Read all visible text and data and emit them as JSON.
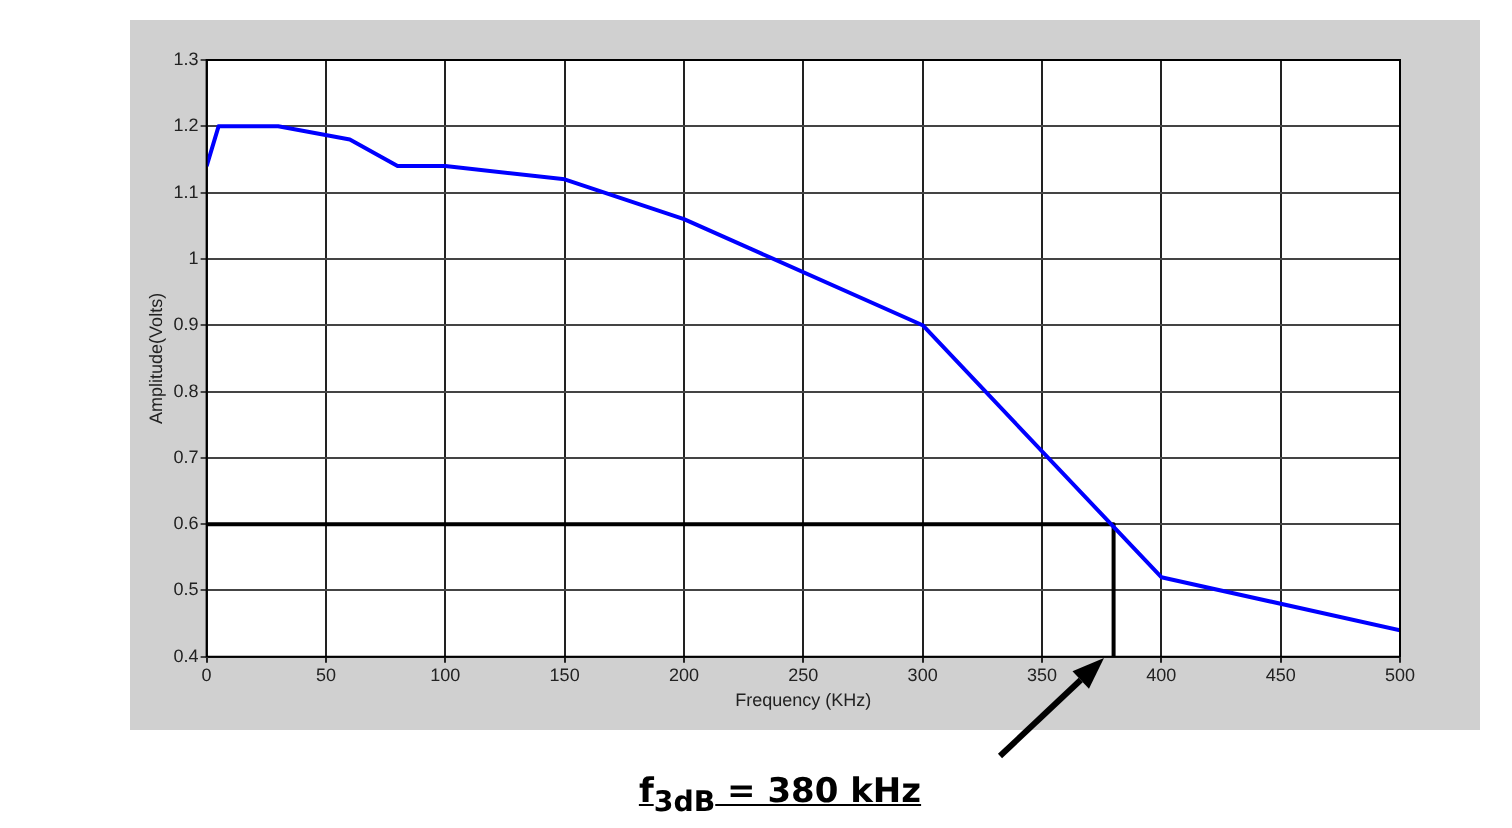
{
  "chart_data": {
    "type": "line",
    "xlabel": "Frequency (KHz)",
    "ylabel": "Amplitude(Volts)",
    "xlim": [
      0,
      500
    ],
    "xticks": [
      0,
      50,
      100,
      150,
      200,
      250,
      300,
      350,
      400,
      450,
      500
    ],
    "ylim": [
      0.4,
      1.3
    ],
    "yticks": [
      0.4,
      0.5,
      0.6,
      0.7,
      0.8,
      0.9,
      1,
      1.1,
      1.2,
      1.3
    ],
    "grid": true,
    "legend": false,
    "marker": "none",
    "line_style": "solid",
    "series": [
      {
        "color": "#0000ff",
        "x": [
          0,
          5,
          30,
          60,
          80,
          100,
          150,
          200,
          300,
          400,
          500
        ],
        "values": [
          1.14,
          1.2,
          1.2,
          1.18,
          1.14,
          1.14,
          1.12,
          1.06,
          0.9,
          0.52,
          0.44
        ]
      },
      {
        "type": "line",
        "color": "#000000",
        "x": [
          0,
          380,
          380
        ],
        "values": [
          0.6,
          0.6,
          0.4
        ]
      }
    ],
    "annotations": [
      "f$_{3dB}$ = 380 kHz"
    ]
  }
}
